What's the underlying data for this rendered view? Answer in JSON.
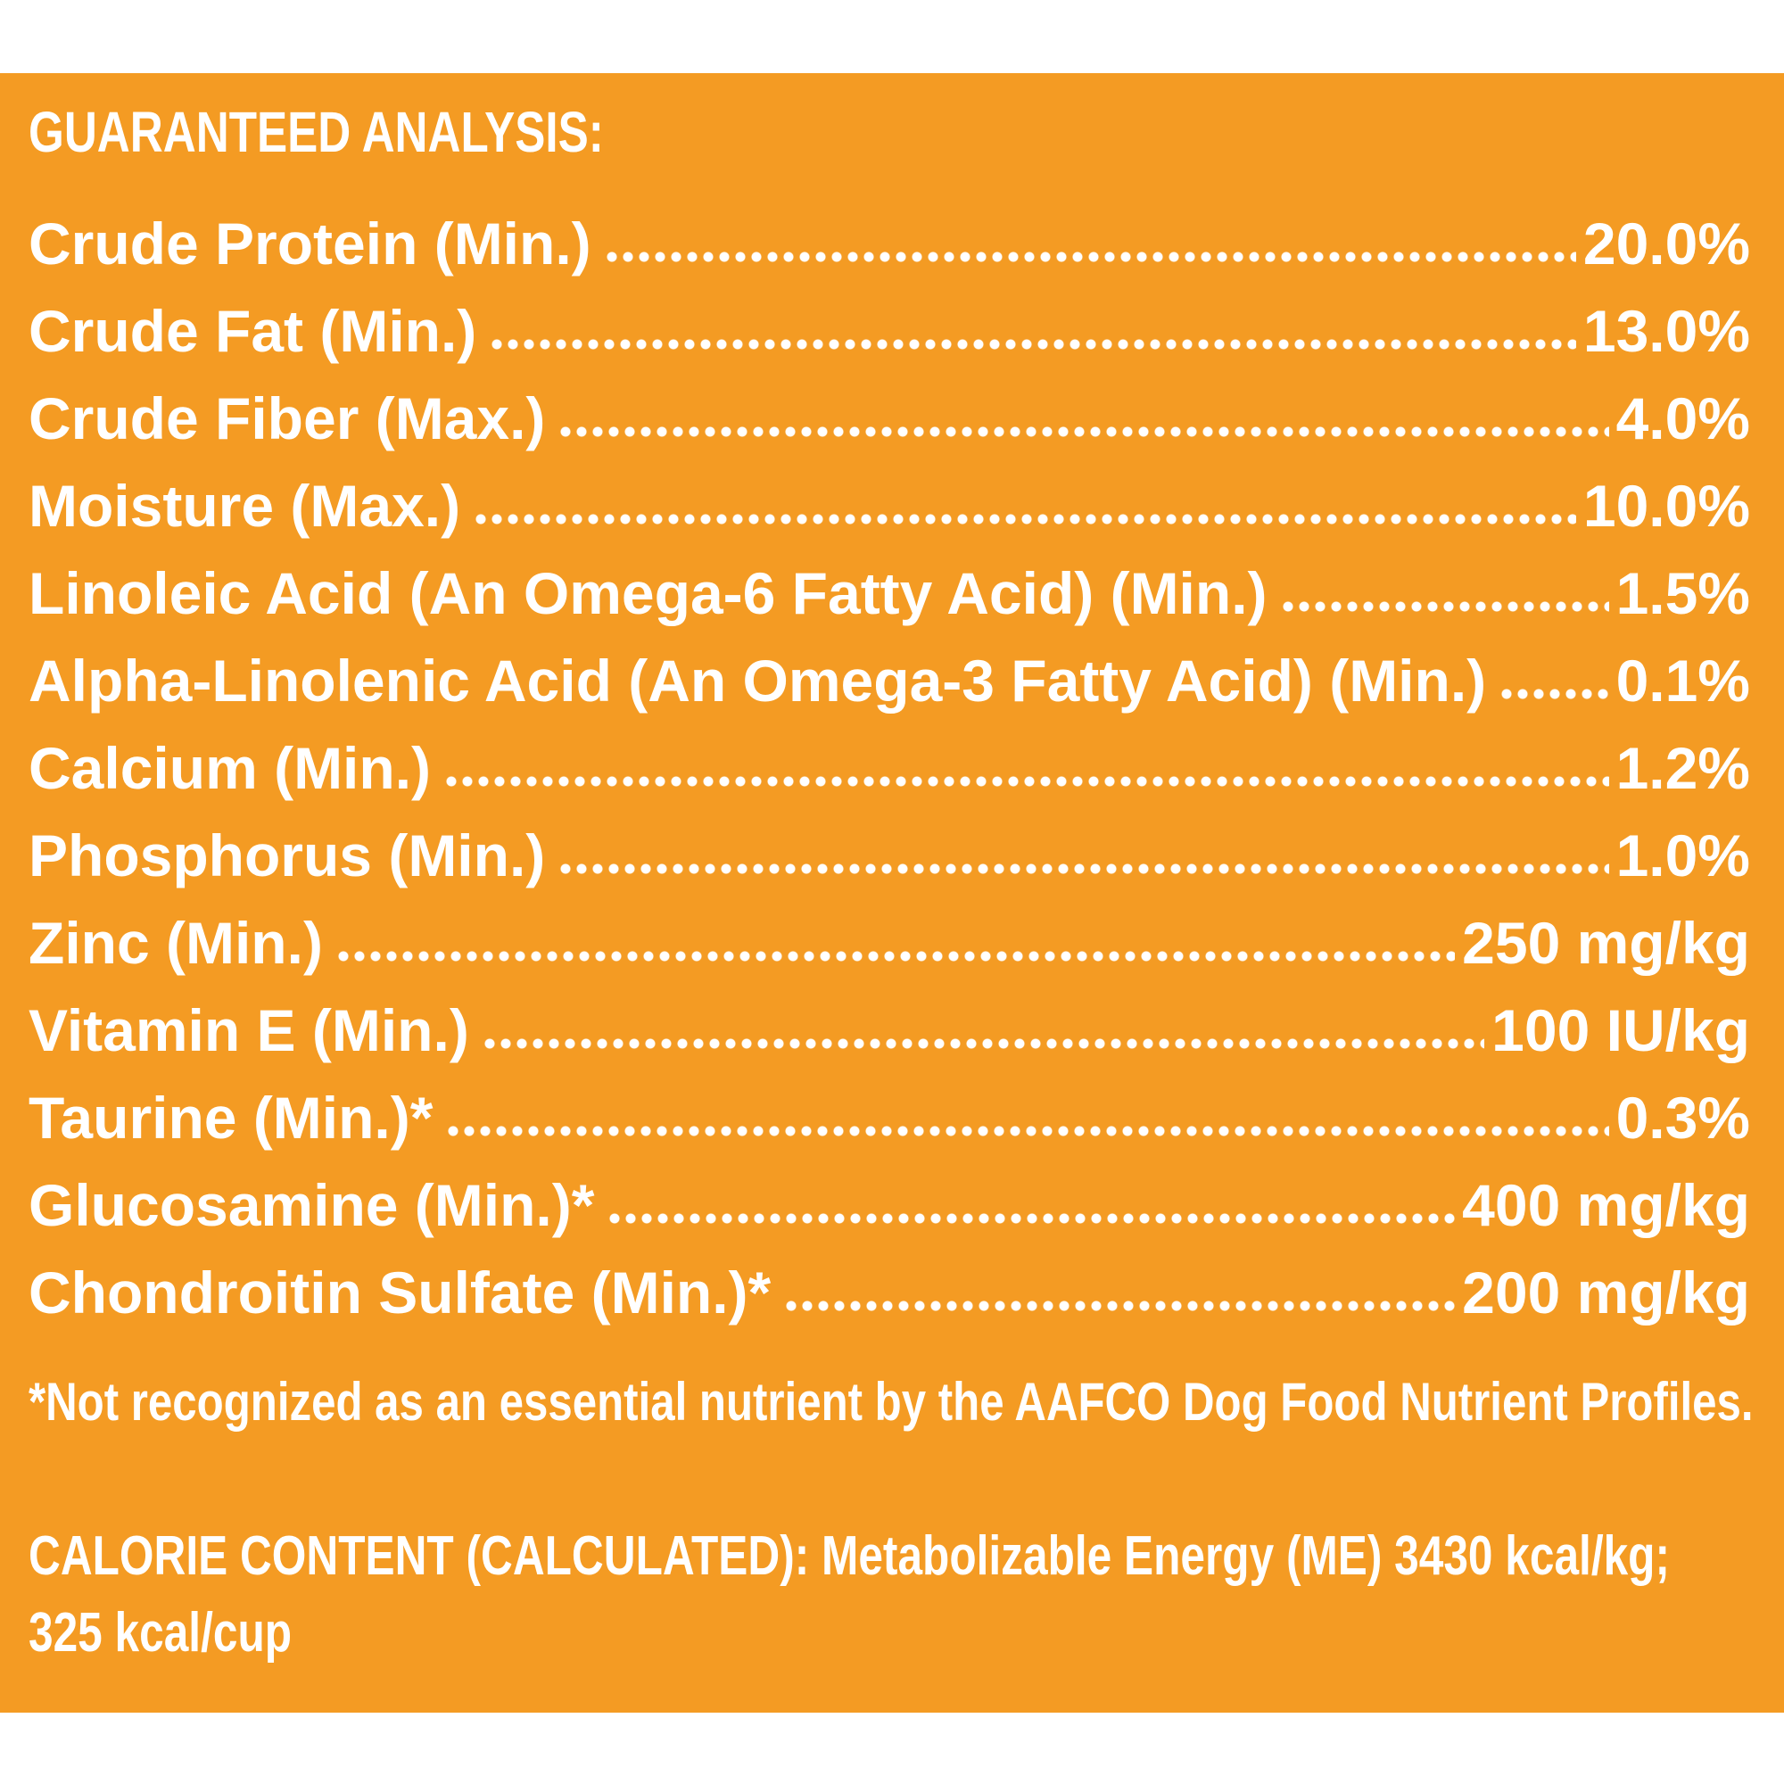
{
  "heading": "GUARANTEED ANALYSIS:",
  "rows": [
    {
      "label": "Crude Protein (Min.)",
      "value": "20.0%"
    },
    {
      "label": "Crude Fat (Min.)",
      "value": "13.0%"
    },
    {
      "label": "Crude Fiber (Max.)",
      "value": "4.0%"
    },
    {
      "label": "Moisture (Max.)",
      "value": "10.0%"
    },
    {
      "label": "Linoleic Acid (An Omega-6 Fatty Acid) (Min.)",
      "value": "1.5%"
    },
    {
      "label": "Alpha-Linolenic Acid (An Omega-3 Fatty Acid) (Min.)",
      "value": "0.1%"
    },
    {
      "label": "Calcium (Min.)",
      "value": "1.2%"
    },
    {
      "label": "Phosphorus (Min.)",
      "value": "1.0%"
    },
    {
      "label": "Zinc (Min.)",
      "value": "250 mg/kg"
    },
    {
      "label": "Vitamin E (Min.)",
      "value": "100 IU/kg"
    },
    {
      "label": "Taurine (Min.)*",
      "value": "0.3%"
    },
    {
      "label": "Glucosamine (Min.)*",
      "value": "400 mg/kg"
    },
    {
      "label": "Chondroitin Sulfate (Min.)*",
      "value": "200 mg/kg"
    }
  ],
  "footnote": "*Not recognized as an essential nutrient by the AAFCO Dog Food Nutrient Profiles.",
  "calorie": {
    "line1": "CALORIE CONTENT (CALCULATED): Metabolizable Energy (ME) 3430 kcal/kg;",
    "line2": "325 kcal/cup"
  },
  "colors": {
    "background": "#f49b23",
    "text": "#ffffff"
  }
}
